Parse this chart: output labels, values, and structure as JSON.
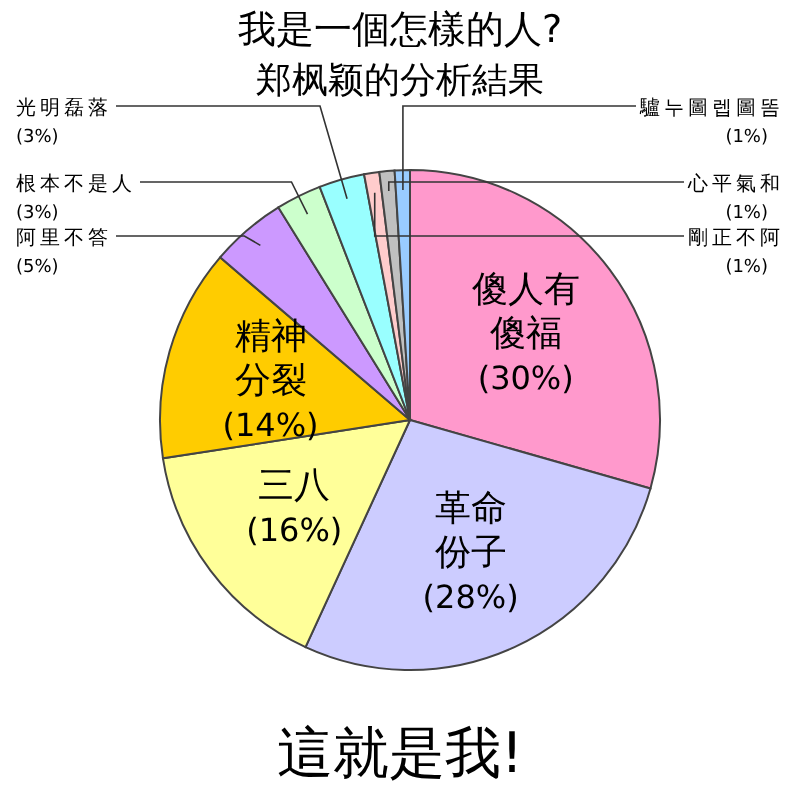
{
  "chart_data": {
    "type": "pie",
    "title": "我是一個怎樣的人?",
    "subtitle": "郑枫颖的分析結果",
    "categories": [
      "傻人有傻福",
      "革命份子",
      "三八",
      "精神分裂",
      "阿里不答",
      "根本不是人",
      "光明磊落",
      "剛正不阿",
      "心平氣和",
      "驢누圖렙圖똠"
    ],
    "values": [
      30,
      28,
      16,
      14,
      5,
      3,
      3,
      1,
      1,
      1
    ],
    "value_labels": [
      "(30%)",
      "(28%)",
      "(16%)",
      "(14%)",
      "(5%)",
      "(3%)",
      "(3%)",
      "(1%)",
      "(1%)",
      "(1%)"
    ],
    "colors": [
      "#ff99cc",
      "#ccccff",
      "#ffff99",
      "#ffcc00",
      "#cc99ff",
      "#ccffcc",
      "#99ffff",
      "#ffcccc",
      "#c0c0c0",
      "#99ccff"
    ],
    "annotations": [
      "這就是我!"
    ]
  }
}
